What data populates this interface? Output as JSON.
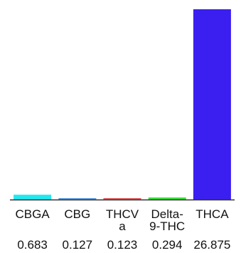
{
  "chart_data": {
    "type": "bar",
    "categories": [
      [
        "CBGA"
      ],
      [
        "CBG"
      ],
      [
        "THCV",
        "a"
      ],
      [
        "Delta-",
        "9-THC"
      ],
      [
        "THCA"
      ]
    ],
    "values": [
      0.683,
      0.127,
      0.123,
      0.294,
      26.875
    ],
    "value_labels": [
      "0.683",
      "0.127",
      "0.123",
      "0.294",
      "26.875"
    ],
    "colors": [
      "#22e8f0",
      "#5a9be0",
      "#e05a5a",
      "#3adf3a",
      "#3a1ff0"
    ],
    "ylim": [
      0,
      26.875
    ],
    "grid": false,
    "title": "",
    "xlabel": "",
    "ylabel": ""
  }
}
